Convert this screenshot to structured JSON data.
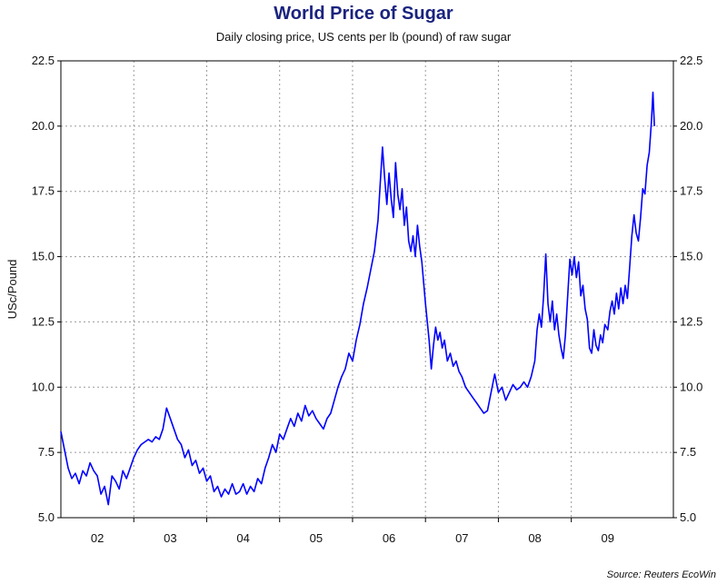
{
  "chart_data": {
    "type": "line",
    "title": "World Price of Sugar",
    "subtitle": "Daily closing price, US cents per lb (pound) of raw sugar",
    "ylabel": "USc/Pound",
    "xlabel": "",
    "source": "Source: Reuters EcoWin",
    "ylim": [
      5.0,
      22.5
    ],
    "xlim": [
      2001.5,
      2009.9
    ],
    "y_ticks": [
      "5.0",
      "7.5",
      "10.0",
      "12.5",
      "15.0",
      "17.5",
      "20.0",
      "22.5"
    ],
    "x_ticks": [
      {
        "label": "02",
        "x": 2002.0
      },
      {
        "label": "03",
        "x": 2003.0
      },
      {
        "label": "04",
        "x": 2004.0
      },
      {
        "label": "05",
        "x": 2005.0
      },
      {
        "label": "06",
        "x": 2006.0
      },
      {
        "label": "07",
        "x": 2007.0
      },
      {
        "label": "08",
        "x": 2008.0
      },
      {
        "label": "09",
        "x": 2009.0
      }
    ],
    "grid": true,
    "series": [
      {
        "name": "Raw sugar",
        "color": "#0000ff",
        "points": [
          [
            2001.5,
            8.3
          ],
          [
            2001.55,
            7.6
          ],
          [
            2001.6,
            6.9
          ],
          [
            2001.65,
            6.5
          ],
          [
            2001.7,
            6.7
          ],
          [
            2001.75,
            6.3
          ],
          [
            2001.8,
            6.8
          ],
          [
            2001.85,
            6.6
          ],
          [
            2001.9,
            7.1
          ],
          [
            2001.95,
            6.8
          ],
          [
            2002.0,
            6.6
          ],
          [
            2002.05,
            5.9
          ],
          [
            2002.1,
            6.2
          ],
          [
            2002.15,
            5.5
          ],
          [
            2002.2,
            6.6
          ],
          [
            2002.25,
            6.4
          ],
          [
            2002.3,
            6.1
          ],
          [
            2002.35,
            6.8
          ],
          [
            2002.4,
            6.5
          ],
          [
            2002.45,
            6.9
          ],
          [
            2002.5,
            7.3
          ],
          [
            2002.55,
            7.6
          ],
          [
            2002.6,
            7.8
          ],
          [
            2002.65,
            7.9
          ],
          [
            2002.7,
            8.0
          ],
          [
            2002.75,
            7.9
          ],
          [
            2002.8,
            8.1
          ],
          [
            2002.85,
            8.0
          ],
          [
            2002.9,
            8.4
          ],
          [
            2002.95,
            9.2
          ],
          [
            2003.0,
            8.8
          ],
          [
            2003.05,
            8.4
          ],
          [
            2003.1,
            8.0
          ],
          [
            2003.15,
            7.8
          ],
          [
            2003.2,
            7.3
          ],
          [
            2003.25,
            7.6
          ],
          [
            2003.3,
            7.0
          ],
          [
            2003.35,
            7.2
          ],
          [
            2003.4,
            6.7
          ],
          [
            2003.45,
            6.9
          ],
          [
            2003.5,
            6.4
          ],
          [
            2003.55,
            6.6
          ],
          [
            2003.6,
            6.0
          ],
          [
            2003.65,
            6.2
          ],
          [
            2003.7,
            5.8
          ],
          [
            2003.75,
            6.1
          ],
          [
            2003.8,
            5.9
          ],
          [
            2003.85,
            6.3
          ],
          [
            2003.9,
            5.9
          ],
          [
            2003.95,
            6.0
          ],
          [
            2004.0,
            6.3
          ],
          [
            2004.05,
            5.9
          ],
          [
            2004.1,
            6.2
          ],
          [
            2004.15,
            6.0
          ],
          [
            2004.2,
            6.5
          ],
          [
            2004.25,
            6.3
          ],
          [
            2004.3,
            6.9
          ],
          [
            2004.35,
            7.3
          ],
          [
            2004.4,
            7.8
          ],
          [
            2004.45,
            7.5
          ],
          [
            2004.5,
            8.2
          ],
          [
            2004.55,
            8.0
          ],
          [
            2004.6,
            8.4
          ],
          [
            2004.65,
            8.8
          ],
          [
            2004.7,
            8.5
          ],
          [
            2004.75,
            9.0
          ],
          [
            2004.8,
            8.7
          ],
          [
            2004.85,
            9.3
          ],
          [
            2004.9,
            8.9
          ],
          [
            2004.95,
            9.1
          ],
          [
            2005.0,
            8.8
          ],
          [
            2005.05,
            8.6
          ],
          [
            2005.1,
            8.4
          ],
          [
            2005.15,
            8.8
          ],
          [
            2005.2,
            9.0
          ],
          [
            2005.25,
            9.5
          ],
          [
            2005.3,
            10.0
          ],
          [
            2005.35,
            10.4
          ],
          [
            2005.4,
            10.7
          ],
          [
            2005.45,
            11.3
          ],
          [
            2005.5,
            11.0
          ],
          [
            2005.55,
            11.8
          ],
          [
            2005.6,
            12.4
          ],
          [
            2005.65,
            13.2
          ],
          [
            2005.7,
            13.8
          ],
          [
            2005.75,
            14.5
          ],
          [
            2005.8,
            15.2
          ],
          [
            2005.85,
            16.4
          ],
          [
            2005.88,
            17.8
          ],
          [
            2005.91,
            19.2
          ],
          [
            2005.94,
            18.0
          ],
          [
            2005.97,
            17.0
          ],
          [
            2006.0,
            18.2
          ],
          [
            2006.03,
            17.2
          ],
          [
            2006.06,
            16.5
          ],
          [
            2006.09,
            18.6
          ],
          [
            2006.12,
            17.4
          ],
          [
            2006.15,
            16.8
          ],
          [
            2006.18,
            17.6
          ],
          [
            2006.21,
            16.2
          ],
          [
            2006.24,
            16.9
          ],
          [
            2006.27,
            15.6
          ],
          [
            2006.3,
            15.2
          ],
          [
            2006.33,
            15.8
          ],
          [
            2006.36,
            15.0
          ],
          [
            2006.39,
            16.2
          ],
          [
            2006.42,
            15.4
          ],
          [
            2006.45,
            14.8
          ],
          [
            2006.5,
            13.2
          ],
          [
            2006.55,
            11.8
          ],
          [
            2006.58,
            10.7
          ],
          [
            2006.61,
            11.6
          ],
          [
            2006.64,
            12.3
          ],
          [
            2006.67,
            11.8
          ],
          [
            2006.7,
            12.1
          ],
          [
            2006.73,
            11.5
          ],
          [
            2006.76,
            11.8
          ],
          [
            2006.8,
            11.0
          ],
          [
            2006.84,
            11.3
          ],
          [
            2006.88,
            10.8
          ],
          [
            2006.92,
            11.0
          ],
          [
            2006.96,
            10.6
          ],
          [
            2007.0,
            10.4
          ],
          [
            2007.05,
            10.0
          ],
          [
            2007.1,
            9.8
          ],
          [
            2007.15,
            9.6
          ],
          [
            2007.2,
            9.4
          ],
          [
            2007.25,
            9.2
          ],
          [
            2007.3,
            9.0
          ],
          [
            2007.35,
            9.1
          ],
          [
            2007.4,
            9.8
          ],
          [
            2007.45,
            10.5
          ],
          [
            2007.5,
            9.8
          ],
          [
            2007.55,
            10.0
          ],
          [
            2007.6,
            9.5
          ],
          [
            2007.65,
            9.8
          ],
          [
            2007.7,
            10.1
          ],
          [
            2007.75,
            9.9
          ],
          [
            2007.8,
            10.0
          ],
          [
            2007.85,
            10.2
          ],
          [
            2007.9,
            10.0
          ],
          [
            2007.95,
            10.4
          ],
          [
            2008.0,
            11.0
          ],
          [
            2008.03,
            12.2
          ],
          [
            2008.06,
            12.8
          ],
          [
            2008.09,
            12.3
          ],
          [
            2008.12,
            13.5
          ],
          [
            2008.15,
            15.1
          ],
          [
            2008.18,
            13.2
          ],
          [
            2008.21,
            12.5
          ],
          [
            2008.24,
            13.3
          ],
          [
            2008.27,
            12.2
          ],
          [
            2008.3,
            12.8
          ],
          [
            2008.33,
            12.0
          ],
          [
            2008.36,
            11.5
          ],
          [
            2008.39,
            11.1
          ],
          [
            2008.42,
            12.0
          ],
          [
            2008.45,
            13.5
          ],
          [
            2008.48,
            14.9
          ],
          [
            2008.51,
            14.3
          ],
          [
            2008.54,
            15.0
          ],
          [
            2008.57,
            14.2
          ],
          [
            2008.6,
            14.8
          ],
          [
            2008.63,
            13.5
          ],
          [
            2008.66,
            13.9
          ],
          [
            2008.69,
            13.0
          ],
          [
            2008.72,
            12.6
          ],
          [
            2008.75,
            11.5
          ],
          [
            2008.78,
            11.3
          ],
          [
            2008.81,
            12.2
          ],
          [
            2008.84,
            11.6
          ],
          [
            2008.87,
            11.4
          ],
          [
            2008.9,
            12.0
          ],
          [
            2008.93,
            11.7
          ],
          [
            2008.96,
            12.4
          ],
          [
            2009.0,
            12.2
          ],
          [
            2009.03,
            12.9
          ],
          [
            2009.06,
            13.3
          ],
          [
            2009.09,
            12.8
          ],
          [
            2009.12,
            13.6
          ],
          [
            2009.15,
            13.0
          ],
          [
            2009.18,
            13.8
          ],
          [
            2009.21,
            13.2
          ],
          [
            2009.24,
            13.9
          ],
          [
            2009.27,
            13.4
          ],
          [
            2009.3,
            14.6
          ],
          [
            2009.33,
            15.8
          ],
          [
            2009.36,
            16.6
          ],
          [
            2009.39,
            15.9
          ],
          [
            2009.42,
            15.6
          ],
          [
            2009.45,
            16.5
          ],
          [
            2009.48,
            17.6
          ],
          [
            2009.51,
            17.4
          ],
          [
            2009.54,
            18.5
          ],
          [
            2009.57,
            19.0
          ],
          [
            2009.6,
            20.2
          ],
          [
            2009.62,
            21.3
          ],
          [
            2009.64,
            20.0
          ]
        ]
      }
    ]
  }
}
